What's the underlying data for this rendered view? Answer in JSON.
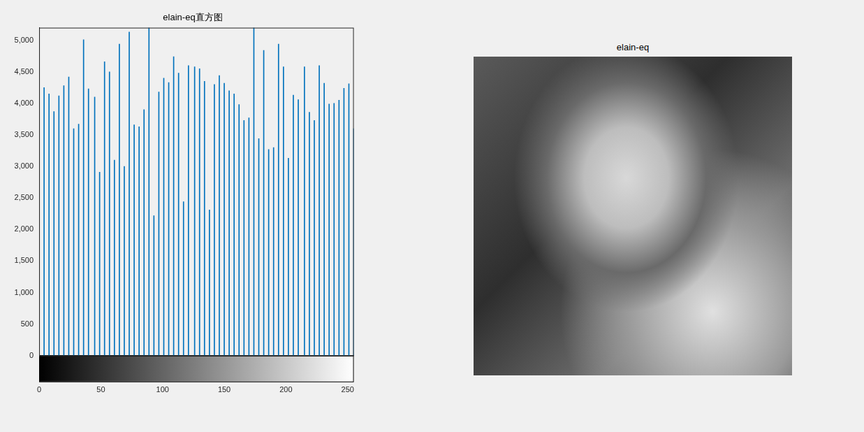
{
  "chart_data": {
    "type": "bar",
    "title": "elain-eq直方图",
    "x": [
      4,
      8,
      12,
      16,
      20,
      24,
      28,
      32,
      36,
      40,
      45,
      49,
      53,
      57,
      61,
      65,
      69,
      73,
      77,
      81,
      85,
      89,
      93,
      97,
      101,
      105,
      109,
      113,
      117,
      121,
      126,
      130,
      134,
      138,
      142,
      146,
      150,
      154,
      158,
      162,
      166,
      170,
      174,
      178,
      182,
      186,
      190,
      194,
      198,
      202,
      206,
      210,
      215,
      219,
      223,
      227,
      231,
      235,
      239,
      243,
      247,
      251,
      255
    ],
    "values": [
      4250,
      4150,
      3870,
      4120,
      4280,
      4420,
      3600,
      3670,
      5010,
      4230,
      4100,
      2910,
      4660,
      4500,
      3100,
      4940,
      3000,
      5130,
      3660,
      3630,
      3900,
      5200,
      2220,
      4180,
      4400,
      4330,
      4740,
      4480,
      2440,
      4600,
      4580,
      4550,
      4350,
      2310,
      4300,
      4440,
      4320,
      4200,
      4150,
      3980,
      3730,
      3770,
      5200,
      3440,
      4840,
      3270,
      3300,
      4940,
      4580,
      3130,
      4130,
      4060,
      4580,
      3860,
      3730,
      4600,
      4320,
      3990,
      4000,
      4050,
      4240,
      4310,
      3600
    ],
    "color": "#0072bd",
    "xlim": [
      0,
      255
    ],
    "xticks": [
      0,
      50,
      100,
      150,
      200,
      250
    ],
    "ylim": [
      0,
      5200
    ],
    "yticks": [
      0,
      500,
      1000,
      1500,
      2000,
      2500,
      3000,
      3500,
      4000,
      4500,
      5000
    ],
    "grid": false
  },
  "image_panel": {
    "title": "elain-eq"
  }
}
